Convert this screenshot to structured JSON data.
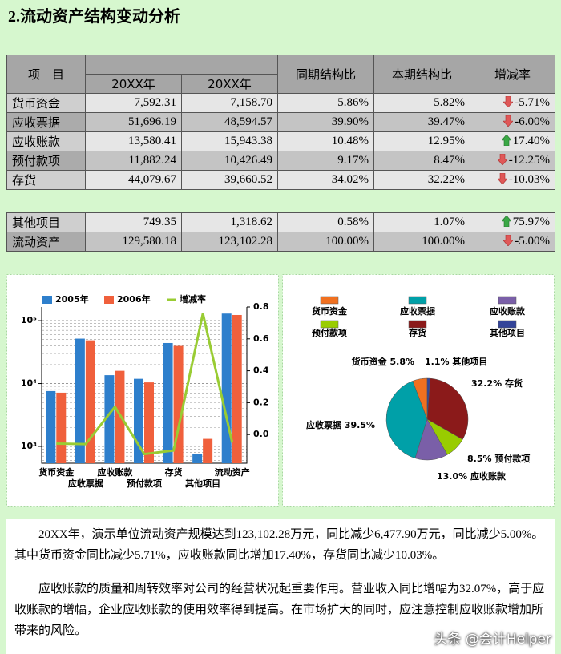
{
  "header": {
    "title": "2.流动资产结构变动分析"
  },
  "table": {
    "columns": [
      "项　目",
      "20XX年",
      "20XX年",
      "同期结构比",
      "本期结构比",
      "增减率"
    ],
    "rows": [
      [
        "货币资金",
        "7,592.31",
        "7,158.70",
        "5.86%",
        "5.82%",
        "-5.71%"
      ],
      [
        "应收票据",
        "51,696.19",
        "48,594.57",
        "39.90%",
        "39.47%",
        "-6.00%"
      ],
      [
        "应收账款",
        "13,580.41",
        "15,943.38",
        "10.48%",
        "12.95%",
        "17.40%"
      ],
      [
        "预付款项",
        "11,882.24",
        "10,426.49",
        "9.17%",
        "8.47%",
        "-12.25%"
      ],
      [
        "存货",
        "44,079.67",
        "39,660.52",
        "34.02%",
        "32.22%",
        "-10.03%"
      ]
    ],
    "summary_rows": [
      [
        "其他项目",
        "749.35",
        "1,318.62",
        "0.58%",
        "1.07%",
        "75.97%"
      ],
      [
        "流动资产",
        "129,580.18",
        "123,102.28",
        "100.00%",
        "100.00%",
        "-5.00%"
      ]
    ]
  },
  "chart_data": [
    {
      "type": "bar",
      "categories": [
        "货币资金",
        "应收票据",
        "应收账款",
        "预付款项",
        "存货",
        "其他项目",
        "流动资产"
      ],
      "series": [
        {
          "name": "2005年",
          "color": "#2e7fcc",
          "values": [
            7592.31,
            51696.19,
            13580.41,
            11882.24,
            44079.67,
            749.35,
            129580.18
          ]
        },
        {
          "name": "2006年",
          "color": "#f0603c",
          "values": [
            7158.7,
            48594.57,
            15943.38,
            10426.49,
            39660.52,
            1318.62,
            123102.28
          ]
        },
        {
          "name": "增减率",
          "type": "line",
          "axis": "y2",
          "color": "#99cc33",
          "values": [
            -0.0571,
            -0.06,
            0.174,
            -0.1225,
            -0.1003,
            0.7597,
            -0.05
          ]
        }
      ],
      "yscale": "log",
      "ylim": [
        540,
        165000
      ],
      "yticks": [
        {
          "value": 1000,
          "label": "10³"
        },
        {
          "value": 10000,
          "label": "10⁴"
        },
        {
          "value": 100000,
          "label": "10⁵"
        }
      ],
      "y_minor_gridlines": [
        600,
        700,
        800,
        900,
        2000,
        3000,
        4000,
        5000,
        6000,
        7000,
        8000,
        9000,
        20000,
        30000,
        40000,
        50000,
        60000,
        70000,
        80000,
        90000
      ],
      "y2lim": [
        -0.18,
        0.8
      ],
      "y2ticks": [
        {
          "value": 0,
          "label": "0.0"
        },
        0.2,
        0.4,
        0.6,
        0.8
      ],
      "grid": true
    },
    {
      "type": "pie",
      "categories": [
        "货币资金",
        "应收票据",
        "应收账款",
        "预付款项",
        "存货",
        "其他项目"
      ],
      "values": [
        5.8,
        39.5,
        13.0,
        8.5,
        32.2,
        1.1
      ],
      "value_labels": [
        "5.8%",
        "39.5%",
        "13.0%",
        "8.5%",
        "32.2%",
        "1.1%"
      ],
      "colors": [
        "#f07020",
        "#00a0a8",
        "#7a5fa8",
        "#99cc00",
        "#8b1a1a",
        "#334499"
      ],
      "start_angle": 90,
      "direction": "counterclockwise"
    }
  ],
  "paragraphs": [
    "20XX年，演示单位流动资产规模达到123,102.28万元，同比减少6,477.90万元，同比减少5.00%。其中货币资金同比减少5.71%，应收账款同比增加17.40%，存货同比减少10.03%。",
    "应收账款的质量和周转效率对公司的经营状况起重要作用。营业收入同比增幅为32.07%，高于应收账款的增幅，企业应收账款的使用效率得到提高。在市场扩大的同时，应注意控制应收账款增加所带来的风险。"
  ],
  "watermark": "头条 @会计Helper"
}
